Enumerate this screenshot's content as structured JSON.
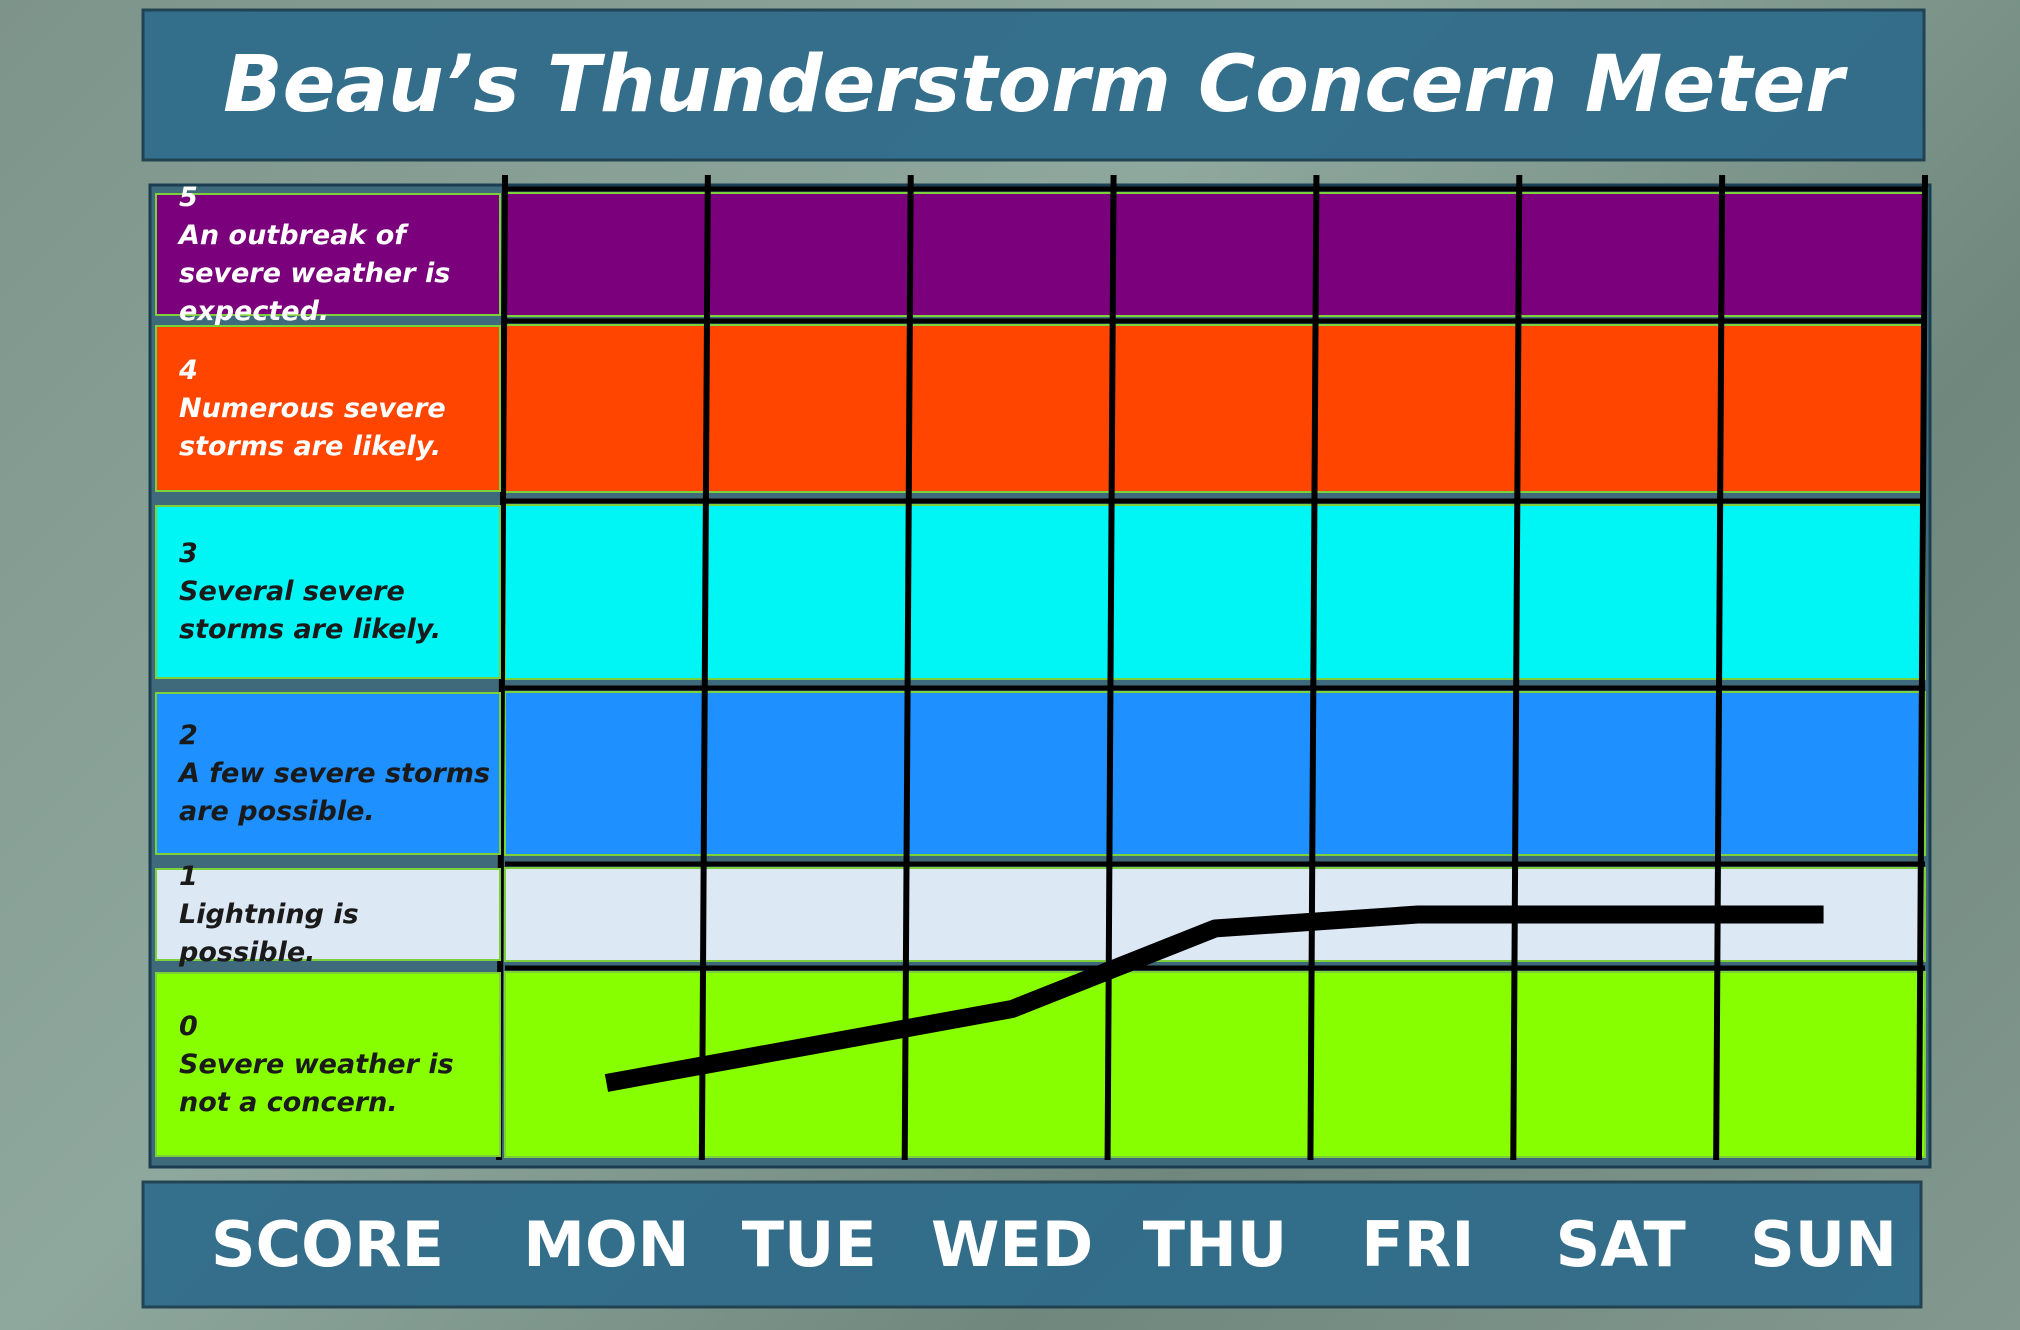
{
  "chart_data": {
    "type": "line",
    "title": "Beau’s Thunderstorm Concern Meter",
    "score_label": "SCORE",
    "categories": [
      "MON",
      "TUE",
      "WED",
      "THU",
      "FRI",
      "SAT",
      "SUN"
    ],
    "series": [
      {
        "color": "#000000",
        "values": [
          0.4,
          0.6,
          0.8,
          1.35,
          1.5,
          1.5,
          1.5
        ]
      }
    ],
    "levels": [
      {
        "score": 5,
        "text": "An outbreak of severe weather is expected.",
        "color": "#7b007b",
        "text_color": "#ffffff"
      },
      {
        "score": 4,
        "text": "Numerous severe storms are likely.",
        "color": "#ff4500",
        "text_color": "#ffffff"
      },
      {
        "score": 3,
        "text": "Several severe storms are likely.",
        "color": "#00f5f5",
        "text_color": "#1a1a1a"
      },
      {
        "score": 2,
        "text": "A few severe storms are possible.",
        "color": "#1e90ff",
        "text_color": "#1a1a1a"
      },
      {
        "score": 1,
        "text": "Lightning is possible.",
        "color": "#dde8f5",
        "text_color": "#1a1a1a"
      },
      {
        "score": 0,
        "text": "Severe weather is not a concern.",
        "color": "#88ff00",
        "text_color": "#1a1a1a"
      }
    ]
  }
}
